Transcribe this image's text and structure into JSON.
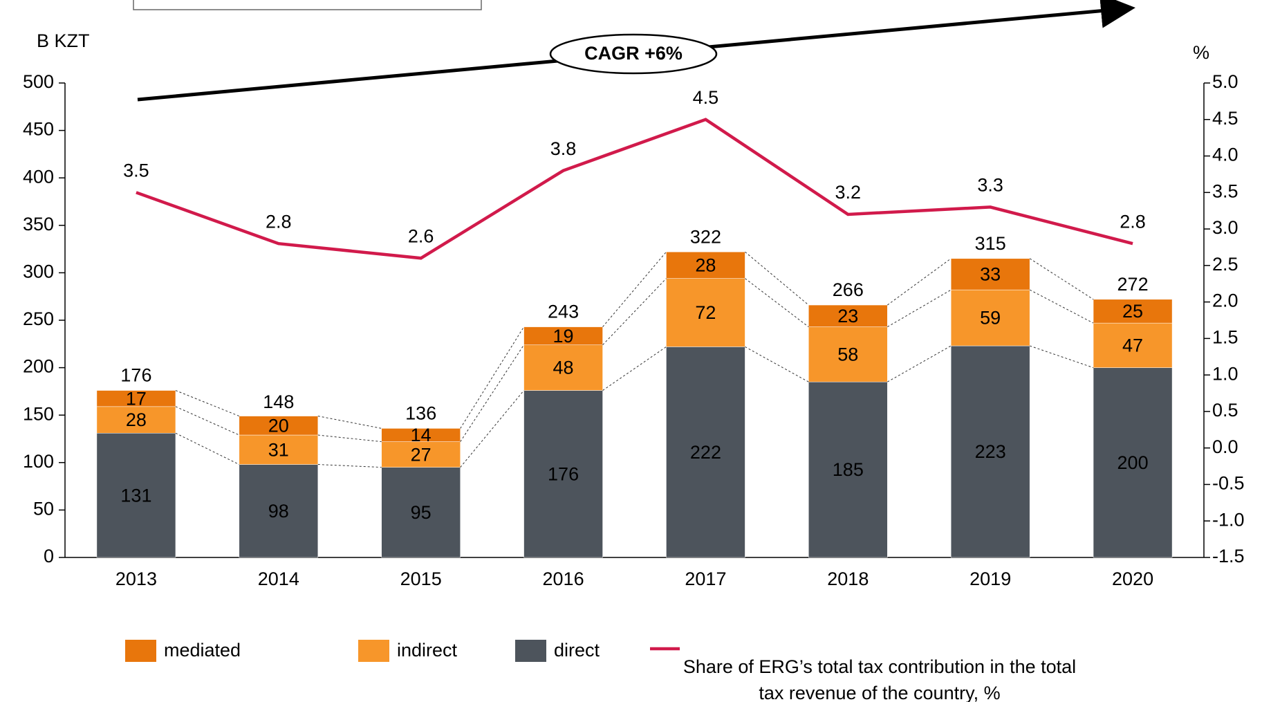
{
  "chart_data": {
    "type": "bar",
    "y_label": "B KZT",
    "y2_label": "%",
    "annotation": "CAGR +6%",
    "categories": [
      "2013",
      "2014",
      "2015",
      "2016",
      "2017",
      "2018",
      "2019",
      "2020"
    ],
    "series": [
      {
        "name": "mediated",
        "color": "#e8760c",
        "values": [
          17,
          20,
          14,
          19,
          28,
          23,
          33,
          25
        ]
      },
      {
        "name": "indirect",
        "color": "#f7962a",
        "values": [
          28,
          31,
          27,
          48,
          72,
          58,
          59,
          47
        ]
      },
      {
        "name": "direct",
        "color": "#4d545c",
        "values": [
          131,
          98,
          95,
          176,
          222,
          185,
          223,
          200
        ]
      },
      {
        "name": "Share of ERG’s total tax contribution in the total tax revenue of the country, %",
        "color": "#d11a4b",
        "axis": "y2",
        "type": "line",
        "values": [
          3.5,
          2.8,
          2.6,
          3.8,
          4.5,
          3.2,
          3.3,
          2.8
        ]
      }
    ],
    "totals": [
      176,
      148,
      136,
      243,
      322,
      266,
      315,
      272
    ],
    "ylim": [
      0,
      500
    ],
    "yticks": [
      0,
      50,
      100,
      150,
      200,
      250,
      300,
      350,
      400,
      450,
      500
    ],
    "y2lim": [
      -1.5,
      5.0
    ],
    "y2ticks": [
      -1.5,
      {
        "value": -1.0,
        "label": "-1.0"
      },
      -0.5,
      {
        "value": 0,
        "label": "0.0"
      },
      0.5,
      {
        "value": 1,
        "label": "1.0"
      },
      1.5,
      {
        "value": 2,
        "label": "2.0"
      },
      2.5,
      {
        "value": 3,
        "label": "3.0"
      },
      3.5,
      {
        "value": 4,
        "label": "4.0"
      },
      4.5,
      {
        "value": 5,
        "label": "5.0"
      }
    ],
    "stacked": true,
    "grid": false
  }
}
